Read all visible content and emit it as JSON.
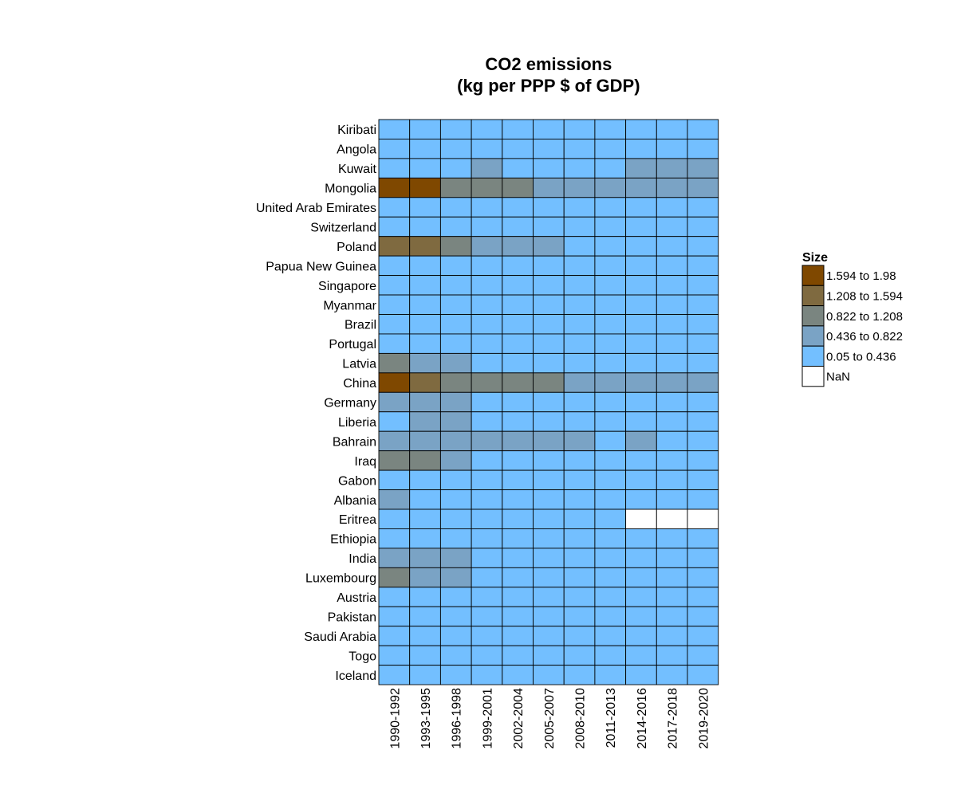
{
  "chart_data": {
    "type": "heatmap",
    "title": [
      "CO2 emissions",
      "(kg per PPP $ of GDP)"
    ],
    "x": [
      "1990-1992",
      "1993-1995",
      "1996-1998",
      "1999-2001",
      "2002-2004",
      "2005-2007",
      "2008-2010",
      "2011-2013",
      "2014-2016",
      "2017-2018",
      "2019-2020"
    ],
    "y": [
      "Kiribati",
      "Angola",
      "Kuwait",
      "Mongolia",
      "United Arab Emirates",
      "Switzerland",
      "Poland",
      "Papua New Guinea",
      "Singapore",
      "Myanmar",
      "Brazil",
      "Portugal",
      "Latvia",
      "China",
      "Germany",
      "Liberia",
      "Bahrain",
      "Iraq",
      "Gabon",
      "Albania",
      "Eritrea",
      "Ethiopia",
      "India",
      "Luxembourg",
      "Austria",
      "Pakistan",
      "Saudi Arabia",
      "Togo",
      "Iceland"
    ],
    "bins": [
      {
        "label": "1.594 to 1.98",
        "color": "#7f4800"
      },
      {
        "label": "1.208 to 1.594",
        "color": "#7f6a40"
      },
      {
        "label": "0.822 to 1.208",
        "color": "#7a8580"
      },
      {
        "label": "0.436 to 0.822",
        "color": "#7aa3c5"
      },
      {
        "label": "0.05 to 0.436",
        "color": "#73bfff"
      },
      {
        "label": "NaN",
        "color": "#ffffff"
      }
    ],
    "legend_title": "Size",
    "legend_position": "right",
    "grid": true,
    "cells": [
      [
        4,
        4,
        4,
        4,
        4,
        4,
        4,
        4,
        4,
        4,
        4
      ],
      [
        4,
        4,
        4,
        4,
        4,
        4,
        4,
        4,
        4,
        4,
        4
      ],
      [
        4,
        4,
        4,
        3,
        4,
        4,
        4,
        4,
        3,
        3,
        3
      ],
      [
        0,
        0,
        2,
        2,
        2,
        3,
        3,
        3,
        3,
        3,
        3
      ],
      [
        4,
        4,
        4,
        4,
        4,
        4,
        4,
        4,
        4,
        4,
        4
      ],
      [
        4,
        4,
        4,
        4,
        4,
        4,
        4,
        4,
        4,
        4,
        4
      ],
      [
        1,
        1,
        2,
        3,
        3,
        3,
        4,
        4,
        4,
        4,
        4
      ],
      [
        4,
        4,
        4,
        4,
        4,
        4,
        4,
        4,
        4,
        4,
        4
      ],
      [
        4,
        4,
        4,
        4,
        4,
        4,
        4,
        4,
        4,
        4,
        4
      ],
      [
        4,
        4,
        4,
        4,
        4,
        4,
        4,
        4,
        4,
        4,
        4
      ],
      [
        4,
        4,
        4,
        4,
        4,
        4,
        4,
        4,
        4,
        4,
        4
      ],
      [
        4,
        4,
        4,
        4,
        4,
        4,
        4,
        4,
        4,
        4,
        4
      ],
      [
        2,
        3,
        3,
        4,
        4,
        4,
        4,
        4,
        4,
        4,
        4
      ],
      [
        0,
        1,
        2,
        2,
        2,
        2,
        3,
        3,
        3,
        3,
        3
      ],
      [
        3,
        3,
        3,
        4,
        4,
        4,
        4,
        4,
        4,
        4,
        4
      ],
      [
        4,
        3,
        3,
        4,
        4,
        4,
        4,
        4,
        4,
        4,
        4
      ],
      [
        3,
        3,
        3,
        3,
        3,
        3,
        3,
        4,
        3,
        4,
        4
      ],
      [
        2,
        2,
        3,
        4,
        4,
        4,
        4,
        4,
        4,
        4,
        4
      ],
      [
        4,
        4,
        4,
        4,
        4,
        4,
        4,
        4,
        4,
        4,
        4
      ],
      [
        3,
        4,
        4,
        4,
        4,
        4,
        4,
        4,
        4,
        4,
        4
      ],
      [
        4,
        4,
        4,
        4,
        4,
        4,
        4,
        4,
        5,
        5,
        5
      ],
      [
        4,
        4,
        4,
        4,
        4,
        4,
        4,
        4,
        4,
        4,
        4
      ],
      [
        3,
        3,
        3,
        4,
        4,
        4,
        4,
        4,
        4,
        4,
        4
      ],
      [
        2,
        3,
        3,
        4,
        4,
        4,
        4,
        4,
        4,
        4,
        4
      ],
      [
        4,
        4,
        4,
        4,
        4,
        4,
        4,
        4,
        4,
        4,
        4
      ],
      [
        4,
        4,
        4,
        4,
        4,
        4,
        4,
        4,
        4,
        4,
        4
      ],
      [
        4,
        4,
        4,
        4,
        4,
        4,
        4,
        4,
        4,
        4,
        4
      ],
      [
        4,
        4,
        4,
        4,
        4,
        4,
        4,
        4,
        4,
        4,
        4
      ],
      [
        4,
        4,
        4,
        4,
        4,
        4,
        4,
        4,
        4,
        4,
        4
      ]
    ]
  }
}
